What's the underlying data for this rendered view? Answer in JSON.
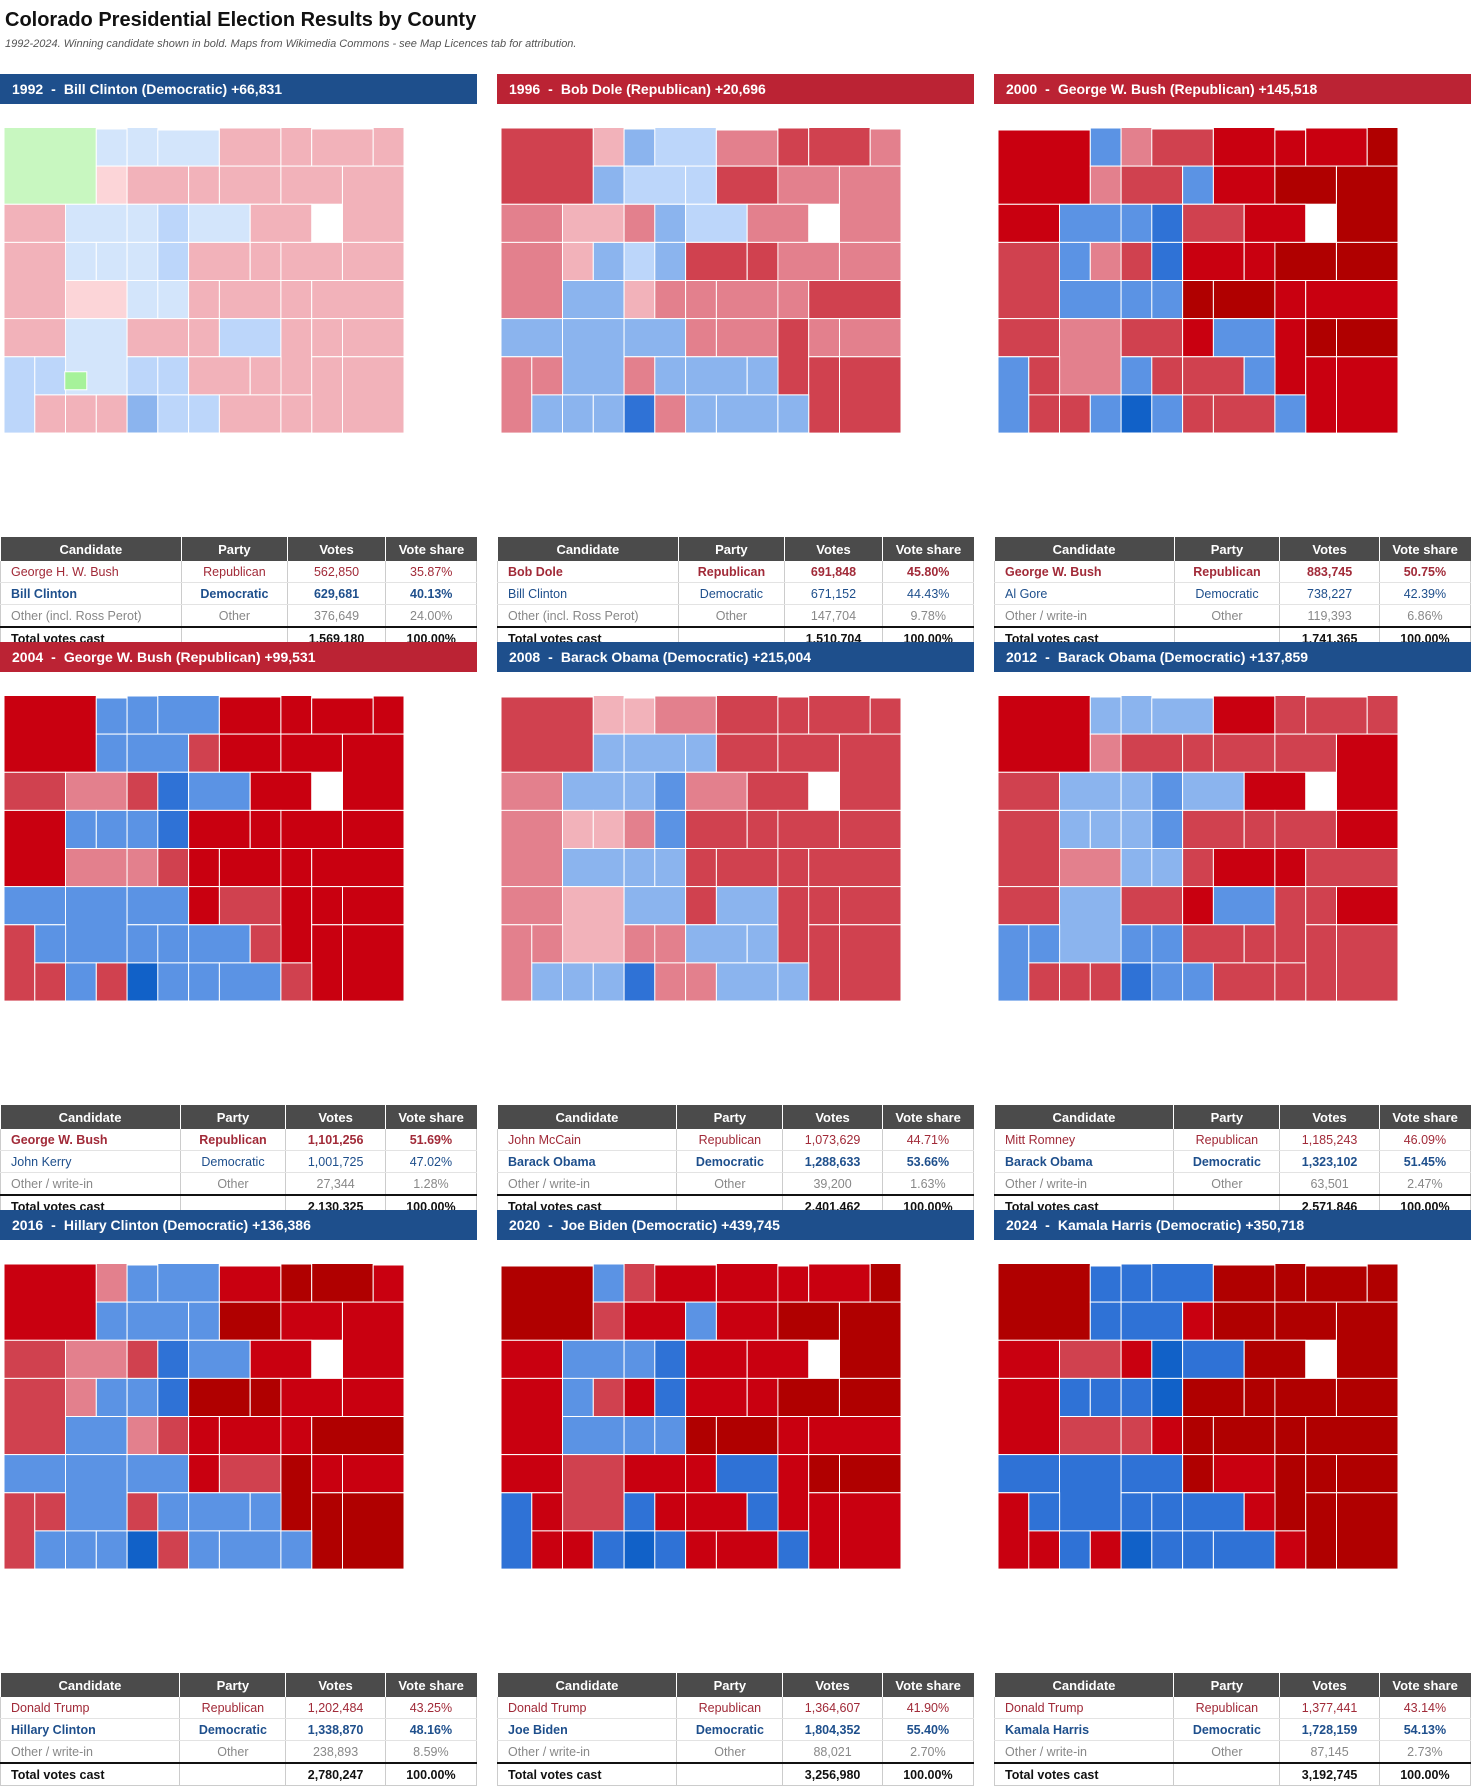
{
  "title": "Colorado Presidential Election Results by County",
  "subtitle": "1992-2024. Winning candidate shown in bold. Maps from Wikimedia Commons - see Map Licences tab for attribution.",
  "table_headers": [
    "Candidate",
    "Party",
    "Votes",
    "Vote share"
  ],
  "colors": {
    "dem_header": "#1e4f8c",
    "rep_header": "#bb2334",
    "rep_text": "#a12a38",
    "dem_text": "#1e4f8c"
  },
  "elections": [
    {
      "year": "1992",
      "headline": "Bill Clinton (Democratic) +66,831",
      "winner_party": "dem",
      "rows": [
        {
          "candidate": "George H. W. Bush",
          "party": "Republican",
          "votes": "562,850",
          "share": "35.87%",
          "type": "rep",
          "win": false
        },
        {
          "candidate": "Bill Clinton",
          "party": "Democratic",
          "votes": "629,681",
          "share": "40.13%",
          "type": "dem",
          "win": true
        },
        {
          "candidate": "Other (incl. Ross Perot)",
          "party": "Other",
          "votes": "376,649",
          "share": "24.00%",
          "type": "oth",
          "win": false
        }
      ],
      "total": {
        "label": "Total votes cast",
        "votes": "1,569,180",
        "share": "100.00%"
      },
      "map": {
        "lean": -0.1,
        "greens": true
      }
    },
    {
      "year": "1996",
      "headline": "Bob Dole (Republican) +20,696",
      "winner_party": "rep",
      "rows": [
        {
          "candidate": "Bob Dole",
          "party": "Republican",
          "votes": "691,848",
          "share": "45.80%",
          "type": "rep",
          "win": true
        },
        {
          "candidate": "Bill Clinton",
          "party": "Democratic",
          "votes": "671,152",
          "share": "44.43%",
          "type": "dem",
          "win": false
        },
        {
          "candidate": "Other (incl. Ross Perot)",
          "party": "Other",
          "votes": "147,704",
          "share": "9.78%",
          "type": "oth",
          "win": false
        }
      ],
      "total": {
        "label": "Total votes cast",
        "votes": "1,510,704",
        "share": "100.00%"
      },
      "map": {
        "lean": 0.35,
        "greens": false
      }
    },
    {
      "year": "2000",
      "headline": "George W. Bush (Republican) +145,518",
      "winner_party": "rep",
      "rows": [
        {
          "candidate": "George W. Bush",
          "party": "Republican",
          "votes": "883,745",
          "share": "50.75%",
          "type": "rep",
          "win": true
        },
        {
          "candidate": "Al Gore",
          "party": "Democratic",
          "votes": "738,227",
          "share": "42.39%",
          "type": "dem",
          "win": false
        },
        {
          "candidate": "Other / write-in",
          "party": "Other",
          "votes": "119,393",
          "share": "6.86%",
          "type": "oth",
          "win": false
        }
      ],
      "total": {
        "label": "Total votes cast",
        "votes": "1,741,365",
        "share": "100.00%"
      },
      "map": {
        "lean": 0.75,
        "greens": false
      }
    },
    {
      "year": "2004",
      "headline": "George W. Bush (Republican) +99,531",
      "winner_party": "rep",
      "rows": [
        {
          "candidate": "George W. Bush",
          "party": "Republican",
          "votes": "1,101,256",
          "share": "51.69%",
          "type": "rep",
          "win": true
        },
        {
          "candidate": "John Kerry",
          "party": "Democratic",
          "votes": "1,001,725",
          "share": "47.02%",
          "type": "dem",
          "win": false
        },
        {
          "candidate": "Other / write-in",
          "party": "Other",
          "votes": "27,344",
          "share": "1.28%",
          "type": "oth",
          "win": false
        }
      ],
      "total": {
        "label": "Total votes cast",
        "votes": "2,130,325",
        "share": "100.00%"
      },
      "map": {
        "lean": 0.7,
        "greens": false
      }
    },
    {
      "year": "2008",
      "headline": "Barack Obama (Democratic) +215,004",
      "winner_party": "dem",
      "rows": [
        {
          "candidate": "John McCain",
          "party": "Republican",
          "votes": "1,073,629",
          "share": "44.71%",
          "type": "rep",
          "win": false
        },
        {
          "candidate": "Barack Obama",
          "party": "Democratic",
          "votes": "1,288,633",
          "share": "53.66%",
          "type": "dem",
          "win": true
        },
        {
          "candidate": "Other / write-in",
          "party": "Other",
          "votes": "39,200",
          "share": "1.63%",
          "type": "oth",
          "win": false
        }
      ],
      "total": {
        "label": "Total votes cast",
        "votes": "2,401,462",
        "share": "100.00%"
      },
      "map": {
        "lean": 0.4,
        "greens": false
      }
    },
    {
      "year": "2012",
      "headline": "Barack Obama (Democratic) +137,859",
      "winner_party": "dem",
      "rows": [
        {
          "candidate": "Mitt Romney",
          "party": "Republican",
          "votes": "1,185,243",
          "share": "46.09%",
          "type": "rep",
          "win": false
        },
        {
          "candidate": "Barack Obama",
          "party": "Democratic",
          "votes": "1,323,102",
          "share": "51.45%",
          "type": "dem",
          "win": true
        },
        {
          "candidate": "Other / write-in",
          "party": "Other",
          "votes": "63,501",
          "share": "2.47%",
          "type": "oth",
          "win": false
        }
      ],
      "total": {
        "label": "Total votes cast",
        "votes": "2,571,846",
        "share": "100.00%"
      },
      "map": {
        "lean": 0.55,
        "greens": false
      }
    },
    {
      "year": "2016",
      "headline": "Hillary Clinton (Democratic) +136,386",
      "winner_party": "dem",
      "rows": [
        {
          "candidate": "Donald Trump",
          "party": "Republican",
          "votes": "1,202,484",
          "share": "43.25%",
          "type": "rep",
          "win": false
        },
        {
          "candidate": "Hillary Clinton",
          "party": "Democratic",
          "votes": "1,338,870",
          "share": "48.16%",
          "type": "dem",
          "win": true
        },
        {
          "candidate": "Other / write-in",
          "party": "Other",
          "votes": "238,893",
          "share": "8.59%",
          "type": "oth",
          "win": false
        }
      ],
      "total": {
        "label": "Total votes cast",
        "votes": "2,780,247",
        "share": "100.00%"
      },
      "map": {
        "lean": 0.8,
        "greens": false
      }
    },
    {
      "year": "2020",
      "headline": "Joe Biden (Democratic) +439,745",
      "winner_party": "dem",
      "rows": [
        {
          "candidate": "Donald Trump",
          "party": "Republican",
          "votes": "1,364,607",
          "share": "41.90%",
          "type": "rep",
          "win": false
        },
        {
          "candidate": "Joe Biden",
          "party": "Democratic",
          "votes": "1,804,352",
          "share": "55.40%",
          "type": "dem",
          "win": true
        },
        {
          "candidate": "Other / write-in",
          "party": "Other",
          "votes": "88,021",
          "share": "2.70%",
          "type": "oth",
          "win": false
        }
      ],
      "total": {
        "label": "Total votes cast",
        "votes": "3,256,980",
        "share": "100.00%"
      },
      "map": {
        "lean": 0.85,
        "greens": false
      }
    },
    {
      "year": "2024",
      "headline": "Kamala Harris (Democratic) +350,718",
      "winner_party": "dem",
      "rows": [
        {
          "candidate": "Donald Trump",
          "party": "Republican",
          "votes": "1,377,441",
          "share": "43.14%",
          "type": "rep",
          "win": false
        },
        {
          "candidate": "Kamala Harris",
          "party": "Democratic",
          "votes": "1,728,159",
          "share": "54.13%",
          "type": "dem",
          "win": true
        },
        {
          "candidate": "Other / write-in",
          "party": "Other",
          "votes": "87,145",
          "share": "2.73%",
          "type": "oth",
          "win": false
        }
      ],
      "total": {
        "label": "Total votes cast",
        "votes": "3,192,745",
        "share": "100.00%"
      },
      "map": {
        "lean": 0.9,
        "greens": false
      }
    }
  ]
}
